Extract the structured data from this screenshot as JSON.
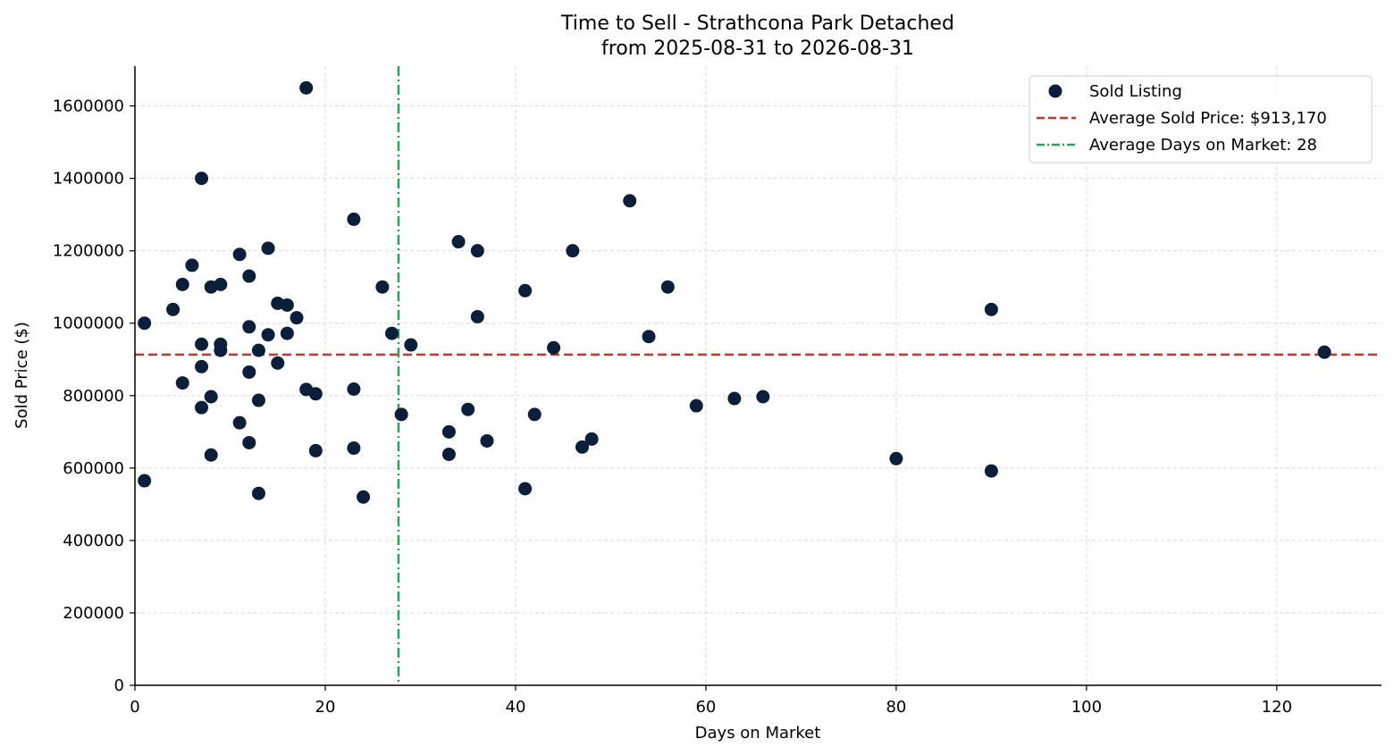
{
  "chart_data": {
    "type": "scatter",
    "title": "Time to Sell - Strathcona Park Detached",
    "subtitle": "from 2025-08-31 to 2026-08-31",
    "xlabel": "Days on Market",
    "ylabel": "Sold Price ($)",
    "xlim": [
      0,
      131
    ],
    "ylim": [
      0,
      1710000
    ],
    "xticks": [
      0,
      20,
      40,
      60,
      80,
      100,
      120
    ],
    "yticks": [
      0,
      200000,
      400000,
      600000,
      800000,
      1000000,
      1200000,
      1400000,
      1600000
    ],
    "grid": true,
    "legend_position": "top-right",
    "series": [
      {
        "name": "Sold Listing",
        "color": "#0b1f3a",
        "points": [
          [
            1,
            1000000
          ],
          [
            1,
            565000
          ],
          [
            4,
            1038000
          ],
          [
            5,
            1107000
          ],
          [
            5,
            835000
          ],
          [
            6,
            1160000
          ],
          [
            7,
            1400000
          ],
          [
            7,
            942000
          ],
          [
            7,
            880000
          ],
          [
            7,
            767000
          ],
          [
            8,
            1100000
          ],
          [
            8,
            797000
          ],
          [
            8,
            636000
          ],
          [
            9,
            1107000
          ],
          [
            9,
            942000
          ],
          [
            9,
            925000
          ],
          [
            11,
            1190000
          ],
          [
            11,
            725000
          ],
          [
            12,
            1130000
          ],
          [
            12,
            990000
          ],
          [
            12,
            865000
          ],
          [
            12,
            670000
          ],
          [
            13,
            925000
          ],
          [
            13,
            787000
          ],
          [
            13,
            530000
          ],
          [
            14,
            1207000
          ],
          [
            14,
            968000
          ],
          [
            15,
            1055000
          ],
          [
            15,
            890000
          ],
          [
            16,
            1050000
          ],
          [
            16,
            972000
          ],
          [
            17,
            1015000
          ],
          [
            18,
            1650000
          ],
          [
            18,
            817000
          ],
          [
            19,
            805000
          ],
          [
            19,
            648000
          ],
          [
            23,
            1287000
          ],
          [
            23,
            818000
          ],
          [
            23,
            655000
          ],
          [
            24,
            520000
          ],
          [
            26,
            1100000
          ],
          [
            27,
            972000
          ],
          [
            28,
            748000
          ],
          [
            29,
            940000
          ],
          [
            33,
            700000
          ],
          [
            33,
            638000
          ],
          [
            34,
            1225000
          ],
          [
            35,
            762000
          ],
          [
            36,
            1200000
          ],
          [
            36,
            1018000
          ],
          [
            37,
            675000
          ],
          [
            41,
            1090000
          ],
          [
            41,
            543000
          ],
          [
            42,
            748000
          ],
          [
            44,
            932000
          ],
          [
            46,
            1200000
          ],
          [
            47,
            658000
          ],
          [
            48,
            680000
          ],
          [
            52,
            1338000
          ],
          [
            54,
            963000
          ],
          [
            56,
            1100000
          ],
          [
            59,
            772000
          ],
          [
            63,
            792000
          ],
          [
            66,
            797000
          ],
          [
            80,
            626000
          ],
          [
            90,
            1038000
          ],
          [
            90,
            592000
          ],
          [
            125,
            920000
          ]
        ]
      }
    ],
    "reference_lines": [
      {
        "name": "Average Sold Price: $913,170",
        "orientation": "horizontal",
        "value": 913170,
        "style": "dashed",
        "color": "#c0392b"
      },
      {
        "name": "Average Days on Market: 28",
        "orientation": "vertical",
        "value": 27.7,
        "style": "dashdot",
        "color": "#2ca05a"
      }
    ]
  }
}
